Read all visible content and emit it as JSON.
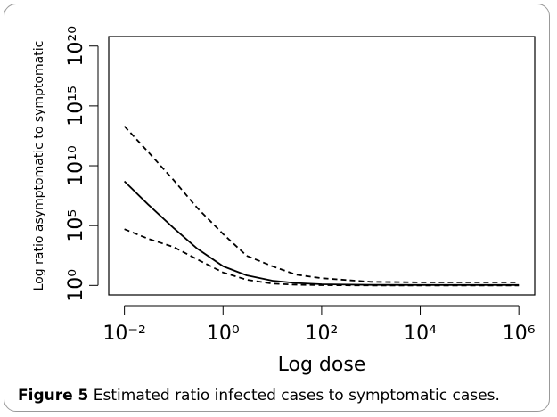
{
  "chart_data": {
    "type": "line",
    "x_label": "Log dose",
    "y_label": "Log ratio asymptomatic to symptomatic",
    "x": [
      0.01,
      0.03,
      0.1,
      0.3,
      1,
      3,
      10,
      30,
      100,
      1000,
      10000,
      100000,
      1000000
    ],
    "series": [
      {
        "color": "#000000",
        "dash": false,
        "values": [
          500000000,
          6000000,
          60000,
          1200,
          40,
          7,
          2.5,
          1.6,
          1.25,
          1.12,
          1.1,
          1.1,
          1.1
        ]
      },
      {
        "color": "#000000",
        "dash": true,
        "values": [
          20000000000000,
          150000000000,
          600000000,
          3000000,
          20000,
          300,
          40,
          8,
          4,
          2,
          1.8,
          1.8,
          1.8
        ]
      },
      {
        "color": "#000000",
        "dash": true,
        "values": [
          50000,
          8000,
          1600,
          150,
          12,
          3,
          1.4,
          1.15,
          1.05,
          1,
          1,
          1,
          1
        ]
      }
    ],
    "xscale": "log",
    "yscale": "log",
    "xlim": [
      0.0048,
      2100000
    ],
    "ylim": [
      0.16,
      630000000000000000000
    ],
    "xticks": [
      {
        "value": 0.01,
        "label": "10⁻²"
      },
      {
        "value": 1,
        "label": "10⁰"
      },
      {
        "value": 100,
        "label": "10²"
      },
      {
        "value": 10000,
        "label": "10⁴"
      },
      {
        "value": 1000000,
        "label": "10⁶"
      }
    ],
    "yticks": [
      {
        "value": 1,
        "label": "10⁰"
      },
      {
        "value": 100000,
        "label": "10⁵"
      },
      {
        "value": 10000000000,
        "label": "10¹⁰"
      },
      {
        "value": 1000000000000000,
        "label": "10¹⁵"
      },
      {
        "value": 100000000000000000000,
        "label": "10²⁰"
      }
    ],
    "grid": false
  },
  "caption": {
    "label": "Figure 5",
    "text": "Estimated ratio infected cases to symptomatic cases."
  }
}
